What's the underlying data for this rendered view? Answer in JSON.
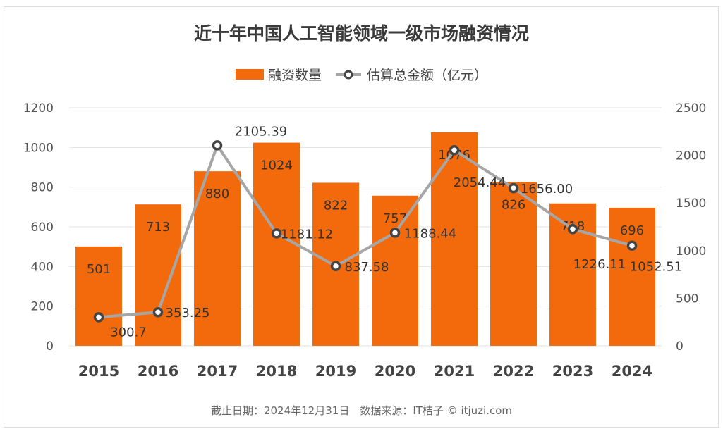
{
  "chart_data": {
    "type": "bar+line",
    "title": "近十年中国人工智能领域一级市场融资情况",
    "categories": [
      "2015",
      "2016",
      "2017",
      "2018",
      "2019",
      "2020",
      "2021",
      "2022",
      "2023",
      "2024"
    ],
    "series": [
      {
        "name": "融资数量",
        "type": "bar",
        "axis": "left",
        "color": "#f26a0c",
        "values": [
          501,
          713,
          880,
          1024,
          822,
          757,
          1076,
          826,
          718,
          696
        ],
        "labels": [
          "501",
          "713",
          "880",
          "1024",
          "822",
          "757",
          "1076",
          "826",
          "718",
          "696"
        ]
      },
      {
        "name": "估算总金额（亿元）",
        "type": "line",
        "axis": "right",
        "color": "#a6a6a6",
        "values": [
          300.7,
          353.25,
          2105.39,
          1181.12,
          837.58,
          1188.44,
          2054.44,
          1656.0,
          1226.11,
          1052.51
        ],
        "labels": [
          "300.7",
          "353.25",
          "2105.39",
          "1181.12",
          "837.58",
          "1188.44",
          "2054.44",
          "1656.00",
          "1226.11",
          "1052.51"
        ]
      }
    ],
    "y_left": {
      "lim": [
        0,
        1200
      ],
      "ticks": [
        "0",
        "200",
        "400",
        "600",
        "800",
        "1000",
        "1200"
      ]
    },
    "y_right": {
      "lim": [
        0,
        2500
      ],
      "ticks": [
        "0",
        "500",
        "1000",
        "1500",
        "2000",
        "2500"
      ]
    },
    "grid": true,
    "legend": "top"
  },
  "footer": "截止日期：2024年12月31日　数据来源：IT桔子 © itjuzi.com"
}
